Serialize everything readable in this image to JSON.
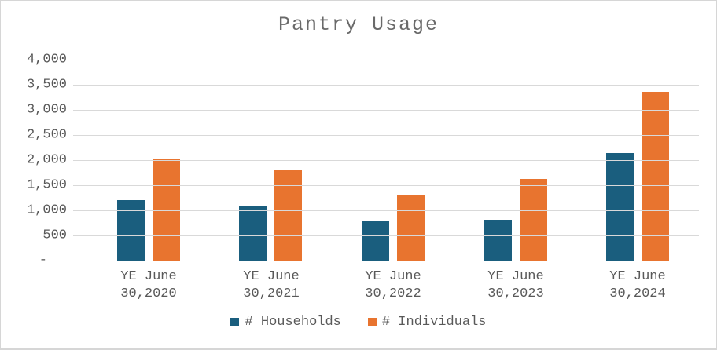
{
  "window": {
    "background": "#ffffff",
    "border_color": "#d6d6d6"
  },
  "colors": {
    "gridline": "#d9d9d9",
    "axis_line": "#c6c6c6",
    "title_text": "#6a6a6a",
    "axis_text": "#595959"
  },
  "chart_data": {
    "type": "bar",
    "title": "Pantry Usage",
    "categories": [
      "YE June 30,2020",
      "YE June 30,2021",
      "YE June 30,2022",
      "YE June 30,2023",
      "YE June 30,2024"
    ],
    "category_label_lines": [
      [
        "YE June",
        "30,2020"
      ],
      [
        "YE June",
        "30,2021"
      ],
      [
        "YE June",
        "30,2022"
      ],
      [
        "YE June",
        "30,2023"
      ],
      [
        "YE June",
        "30,2024"
      ]
    ],
    "series": [
      {
        "name": "# Households",
        "color": "#1A5E7E",
        "values": [
          1200,
          1090,
          800,
          820,
          2140
        ]
      },
      {
        "name": "# Individuals",
        "color": "#E8742F",
        "values": [
          2030,
          1810,
          1290,
          1630,
          3360
        ]
      }
    ],
    "xlabel": "",
    "ylabel": "",
    "ylim": [
      0,
      4000
    ],
    "ytick_step": 500,
    "ytick_labels_top_to_bottom": [
      "4,000",
      "3,500",
      "3,000",
      "2,500",
      "2,000",
      "1,500",
      "1,000",
      "500",
      "-"
    ],
    "grid": true,
    "legend_position": "bottom"
  }
}
